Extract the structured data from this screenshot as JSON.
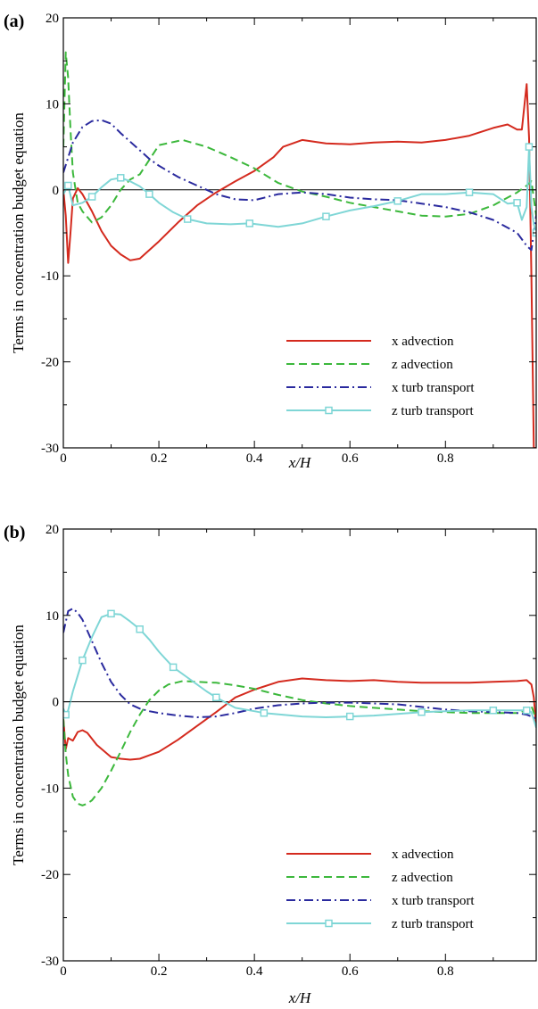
{
  "chart_data": [
    {
      "type": "line",
      "panel_label": "(a)",
      "xlabel": "x/H",
      "ylabel": "Terms in concentration budget equation",
      "xlim": [
        0,
        0.99
      ],
      "ylim": [
        -30,
        20
      ],
      "x_ticks": [
        0,
        0.2,
        0.4,
        0.6,
        0.8
      ],
      "y_ticks": [
        -30,
        -20,
        -10,
        0,
        10,
        20
      ],
      "zero_line": true,
      "legend_position": "bottom-right",
      "series": [
        {
          "name": "x advection",
          "color": "#d42a1e",
          "style": "solid",
          "x": [
            0,
            0.005,
            0.01,
            0.015,
            0.02,
            0.03,
            0.04,
            0.06,
            0.08,
            0.1,
            0.12,
            0.14,
            0.16,
            0.18,
            0.2,
            0.24,
            0.28,
            0.32,
            0.36,
            0.4,
            0.44,
            0.46,
            0.5,
            0.55,
            0.6,
            0.65,
            0.7,
            0.75,
            0.8,
            0.85,
            0.9,
            0.93,
            0.95,
            0.96,
            0.97,
            0.975,
            0.98,
            0.985,
            0.99
          ],
          "y": [
            0,
            -3,
            -8.5,
            -5,
            -1,
            0.2,
            -0.5,
            -2.5,
            -4.8,
            -6.5,
            -7.5,
            -8.2,
            -8.0,
            -7,
            -6,
            -3.8,
            -1.8,
            -0.3,
            1,
            2.2,
            3.8,
            5,
            5.8,
            5.4,
            5.3,
            5.5,
            5.6,
            5.5,
            5.8,
            6.3,
            7.2,
            7.6,
            7.0,
            7.0,
            12.3,
            6,
            -10,
            -30,
            -30
          ]
        },
        {
          "name": "z advection",
          "color": "#3cb83c",
          "style": "dashed",
          "x": [
            0,
            0.005,
            0.01,
            0.015,
            0.02,
            0.03,
            0.04,
            0.06,
            0.08,
            0.1,
            0.12,
            0.14,
            0.16,
            0.18,
            0.2,
            0.25,
            0.3,
            0.35,
            0.4,
            0.45,
            0.5,
            0.55,
            0.6,
            0.65,
            0.7,
            0.75,
            0.8,
            0.85,
            0.9,
            0.95,
            0.97,
            0.98,
            0.99
          ],
          "y": [
            5,
            16,
            13,
            7,
            2,
            -1.5,
            -2.5,
            -3.8,
            -3.2,
            -1.8,
            0,
            1.2,
            1.8,
            3.5,
            5.2,
            5.8,
            5.0,
            3.8,
            2.5,
            0.8,
            -0.2,
            -0.8,
            -1.5,
            -2,
            -2.5,
            -3,
            -3.1,
            -2.8,
            -1.8,
            -0.3,
            0.5,
            1,
            -3
          ]
        },
        {
          "name": "x turb transport",
          "color": "#2a2a9e",
          "style": "dashdot",
          "x": [
            0,
            0.02,
            0.04,
            0.06,
            0.08,
            0.1,
            0.12,
            0.14,
            0.16,
            0.18,
            0.2,
            0.24,
            0.28,
            0.32,
            0.36,
            0.4,
            0.45,
            0.5,
            0.55,
            0.6,
            0.65,
            0.7,
            0.75,
            0.8,
            0.85,
            0.9,
            0.95,
            0.97,
            0.98,
            0.99
          ],
          "y": [
            2,
            5.5,
            7.3,
            8,
            8.1,
            7.7,
            6.6,
            5.6,
            4.6,
            3.6,
            2.8,
            1.5,
            0.5,
            -0.5,
            -1.1,
            -1.2,
            -0.5,
            -0.3,
            -0.5,
            -0.9,
            -1.1,
            -1.2,
            -1.6,
            -2,
            -2.6,
            -3.5,
            -5,
            -6.5,
            -7,
            -3
          ]
        },
        {
          "name": "z turb transport",
          "color": "#7fd6d6",
          "style": "solid",
          "marker": "square",
          "x": [
            0,
            0.01,
            0.02,
            0.04,
            0.06,
            0.08,
            0.1,
            0.12,
            0.14,
            0.16,
            0.18,
            0.2,
            0.23,
            0.26,
            0.3,
            0.35,
            0.39,
            0.45,
            0.5,
            0.55,
            0.6,
            0.65,
            0.7,
            0.75,
            0.8,
            0.85,
            0.9,
            0.93,
            0.95,
            0.96,
            0.97,
            0.975,
            0.98,
            0.985,
            0.99
          ],
          "y": [
            -0.5,
            0.5,
            -1.8,
            -1.5,
            -0.8,
            0.3,
            1.2,
            1.4,
            1.0,
            0.4,
            -0.5,
            -1.5,
            -2.6,
            -3.4,
            -3.9,
            -4.0,
            -3.9,
            -4.3,
            -3.9,
            -3.1,
            -2.4,
            -1.9,
            -1.3,
            -0.5,
            -0.5,
            -0.3,
            -0.5,
            -1.6,
            -1.5,
            -3.5,
            -2,
            5,
            -2,
            -4,
            -5
          ]
        }
      ]
    },
    {
      "type": "line",
      "panel_label": "(b)",
      "xlabel": "x/H",
      "ylabel": "Terms in concentration budget equation",
      "xlim": [
        0,
        0.99
      ],
      "ylim": [
        -30,
        20
      ],
      "x_ticks": [
        0,
        0.2,
        0.4,
        0.6,
        0.8
      ],
      "y_ticks": [
        -30,
        -20,
        -10,
        0,
        10,
        20
      ],
      "zero_line": true,
      "legend_position": "bottom-right",
      "series": [
        {
          "name": "x advection",
          "color": "#d42a1e",
          "style": "solid",
          "x": [
            0,
            0.005,
            0.01,
            0.02,
            0.03,
            0.04,
            0.05,
            0.07,
            0.1,
            0.12,
            0.14,
            0.16,
            0.18,
            0.2,
            0.24,
            0.28,
            0.32,
            0.36,
            0.4,
            0.45,
            0.5,
            0.55,
            0.6,
            0.65,
            0.7,
            0.75,
            0.8,
            0.85,
            0.9,
            0.95,
            0.97,
            0.98,
            0.985,
            0.99
          ],
          "y": [
            -2,
            -5.5,
            -4.2,
            -4.5,
            -3.5,
            -3.3,
            -3.6,
            -5,
            -6.4,
            -6.6,
            -6.7,
            -6.6,
            -6.2,
            -5.8,
            -4.4,
            -2.8,
            -1.2,
            0.5,
            1.4,
            2.3,
            2.7,
            2.5,
            2.4,
            2.5,
            2.3,
            2.2,
            2.2,
            2.2,
            2.3,
            2.4,
            2.5,
            2,
            0.5,
            -3
          ]
        },
        {
          "name": "z advection",
          "color": "#3cb83c",
          "style": "dashed",
          "x": [
            0,
            0.005,
            0.01,
            0.02,
            0.03,
            0.04,
            0.05,
            0.06,
            0.08,
            0.1,
            0.12,
            0.14,
            0.16,
            0.18,
            0.2,
            0.22,
            0.25,
            0.28,
            0.32,
            0.36,
            0.4,
            0.45,
            0.5,
            0.55,
            0.6,
            0.65,
            0.7,
            0.75,
            0.8,
            0.85,
            0.9,
            0.95,
            0.97,
            0.98,
            0.99
          ],
          "y": [
            -2,
            -6,
            -8.5,
            -11,
            -11.8,
            -12,
            -11.8,
            -11.4,
            -10,
            -8,
            -5.8,
            -3.5,
            -1.5,
            0.2,
            1.3,
            2,
            2.4,
            2.3,
            2.2,
            1.9,
            1.5,
            0.8,
            0.2,
            -0.2,
            -0.5,
            -0.7,
            -0.9,
            -1.1,
            -1.2,
            -1.3,
            -1.3,
            -1.3,
            -1,
            -0.5,
            -2
          ]
        },
        {
          "name": "x turb transport",
          "color": "#2a2a9e",
          "style": "dashdot",
          "x": [
            0,
            0.01,
            0.02,
            0.03,
            0.04,
            0.06,
            0.08,
            0.1,
            0.12,
            0.14,
            0.16,
            0.18,
            0.2,
            0.24,
            0.28,
            0.32,
            0.36,
            0.4,
            0.45,
            0.5,
            0.55,
            0.6,
            0.65,
            0.7,
            0.75,
            0.8,
            0.85,
            0.9,
            0.95,
            0.97,
            0.98,
            0.99
          ],
          "y": [
            8,
            10.5,
            10.8,
            10.3,
            9.5,
            7,
            4.5,
            2.3,
            0.8,
            -0.3,
            -0.8,
            -1.1,
            -1.3,
            -1.6,
            -1.8,
            -1.7,
            -1.3,
            -0.8,
            -0.4,
            -0.2,
            -0.1,
            -0.1,
            -0.2,
            -0.3,
            -0.6,
            -0.9,
            -1.1,
            -1.2,
            -1.3,
            -1.5,
            -1.7,
            -2
          ]
        },
        {
          "name": "z turb transport",
          "color": "#7fd6d6",
          "style": "solid",
          "marker": "square",
          "x": [
            0,
            0.005,
            0.01,
            0.02,
            0.04,
            0.06,
            0.08,
            0.1,
            0.12,
            0.14,
            0.16,
            0.18,
            0.2,
            0.23,
            0.26,
            0.3,
            0.32,
            0.36,
            0.4,
            0.42,
            0.5,
            0.55,
            0.6,
            0.65,
            0.7,
            0.75,
            0.8,
            0.85,
            0.9,
            0.93,
            0.95,
            0.97,
            0.98,
            0.99
          ],
          "y": [
            -0.8,
            -1.5,
            -1,
            1.2,
            4.8,
            7.5,
            9.8,
            10.2,
            10.1,
            9.3,
            8.4,
            7.2,
            5.8,
            4,
            2.8,
            1.2,
            0.5,
            -0.7,
            -1.1,
            -1.3,
            -1.7,
            -1.8,
            -1.7,
            -1.6,
            -1.4,
            -1.2,
            -1.1,
            -1.0,
            -1.0,
            -1.0,
            -1.0,
            -1.0,
            -1.2,
            -3
          ]
        }
      ]
    }
  ]
}
